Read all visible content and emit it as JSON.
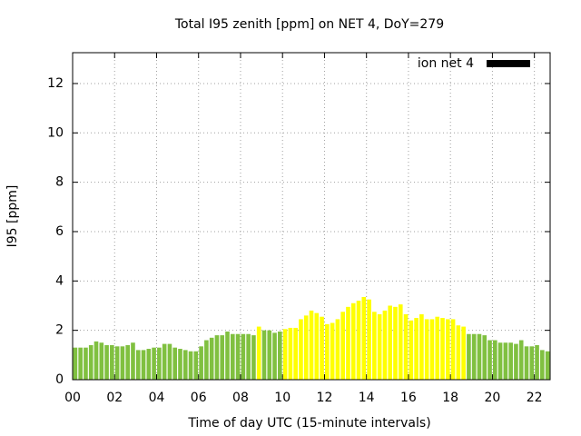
{
  "chart_data": {
    "type": "bar",
    "title": "Total I95 zenith [ppm] on NET 4, DoY=279",
    "xlabel": "Time of day UTC (15-minute intervals)",
    "ylabel": "I95 [ppm]",
    "series": [
      {
        "name": "ion net 4",
        "color": "#000000",
        "values": [
          1.3,
          1.3,
          1.3,
          1.4,
          1.55,
          1.5,
          1.4,
          1.4,
          1.35,
          1.35,
          1.4,
          1.5,
          1.2,
          1.2,
          1.25,
          1.3,
          1.3,
          1.45,
          1.45,
          1.3,
          1.25,
          1.2,
          1.15,
          1.15,
          1.35,
          1.6,
          1.7,
          1.8,
          1.8,
          1.95,
          1.85,
          1.85,
          1.85,
          1.85,
          1.8,
          2.15,
          2.0,
          2.0,
          1.9,
          1.95,
          2.05,
          2.1,
          2.1,
          2.45,
          2.6,
          2.8,
          2.7,
          2.55,
          2.25,
          2.3,
          2.45,
          2.75,
          2.95,
          3.1,
          3.2,
          3.35,
          3.25,
          2.75,
          2.65,
          2.8,
          3.0,
          2.95,
          3.05,
          2.65,
          2.4,
          2.5,
          2.65,
          2.45,
          2.45,
          2.55,
          2.5,
          2.45,
          2.45,
          2.2,
          2.15,
          1.85,
          1.85,
          1.85,
          1.8,
          1.6,
          1.6,
          1.5,
          1.5,
          1.5,
          1.45,
          1.6,
          1.35,
          1.35,
          1.4,
          1.2,
          1.15
        ]
      }
    ],
    "x": [
      0,
      0.25,
      0.5,
      0.75,
      1,
      1.25,
      1.5,
      1.75,
      2,
      2.25,
      2.5,
      2.75,
      3,
      3.25,
      3.5,
      3.75,
      4,
      4.25,
      4.5,
      4.75,
      5,
      5.25,
      5.5,
      5.75,
      6,
      6.25,
      6.5,
      6.75,
      7,
      7.25,
      7.5,
      7.75,
      8,
      8.25,
      8.5,
      8.75,
      9,
      9.25,
      9.5,
      9.75,
      10,
      10.25,
      10.5,
      10.75,
      11,
      11.25,
      11.5,
      11.75,
      12,
      12.25,
      12.5,
      12.75,
      13,
      13.25,
      13.5,
      13.75,
      14,
      14.25,
      14.5,
      14.75,
      15,
      15.25,
      15.5,
      15.75,
      16,
      16.25,
      16.5,
      16.75,
      17,
      17.25,
      17.5,
      17.75,
      18,
      18.25,
      18.5,
      18.75,
      19,
      19.25,
      19.5,
      19.75,
      20,
      20.25,
      20.5,
      20.75,
      21,
      21.25,
      21.5,
      21.75,
      22,
      22.25,
      22.5
    ],
    "bar_colors": [
      "#80c040",
      "#80c040",
      "#80c040",
      "#80c040",
      "#80c040",
      "#80c040",
      "#80c040",
      "#80c040",
      "#80c040",
      "#80c040",
      "#80c040",
      "#80c040",
      "#80c040",
      "#80c040",
      "#80c040",
      "#80c040",
      "#80c040",
      "#80c040",
      "#80c040",
      "#80c040",
      "#80c040",
      "#80c040",
      "#80c040",
      "#80c040",
      "#80c040",
      "#80c040",
      "#80c040",
      "#80c040",
      "#80c040",
      "#80c040",
      "#80c040",
      "#80c040",
      "#80c040",
      "#80c040",
      "#80c040",
      "#ffff00",
      "#80c040",
      "#80c040",
      "#80c040",
      "#80c040",
      "#ffff00",
      "#ffff00",
      "#ffff00",
      "#ffff00",
      "#ffff00",
      "#ffff00",
      "#ffff00",
      "#ffff00",
      "#ffff00",
      "#ffff00",
      "#ffff00",
      "#ffff00",
      "#ffff00",
      "#ffff00",
      "#ffff00",
      "#ffff00",
      "#ffff00",
      "#ffff00",
      "#ffff00",
      "#ffff00",
      "#ffff00",
      "#ffff00",
      "#ffff00",
      "#ffff00",
      "#ffff00",
      "#ffff00",
      "#ffff00",
      "#ffff00",
      "#ffff00",
      "#ffff00",
      "#ffff00",
      "#ffff00",
      "#ffff00",
      "#ffff00",
      "#ffff00",
      "#80c040",
      "#80c040",
      "#80c040",
      "#80c040",
      "#80c040",
      "#80c040",
      "#80c040",
      "#80c040",
      "#80c040",
      "#80c040",
      "#80c040",
      "#80c040",
      "#80c040",
      "#80c040",
      "#80c040",
      "#80c040"
    ],
    "bar_width": 0.25,
    "xlim": [
      0,
      22.75
    ],
    "xticks": [
      {
        "value": 0,
        "label": "00"
      },
      {
        "value": 2,
        "label": "02"
      },
      {
        "value": 4,
        "label": "04"
      },
      {
        "value": 6,
        "label": "06"
      },
      {
        "value": 8,
        "label": "08"
      },
      {
        "value": 10,
        "label": "10"
      },
      {
        "value": 12,
        "label": "12"
      },
      {
        "value": 14,
        "label": "14"
      },
      {
        "value": 16,
        "label": "16"
      },
      {
        "value": 18,
        "label": "18"
      },
      {
        "value": 20,
        "label": "20"
      },
      {
        "value": 22,
        "label": "22"
      }
    ],
    "ylim": [
      0,
      13.25
    ],
    "yticks": [
      0,
      2,
      4,
      6,
      8,
      10,
      12
    ],
    "grid": true,
    "legend": "top-right"
  }
}
